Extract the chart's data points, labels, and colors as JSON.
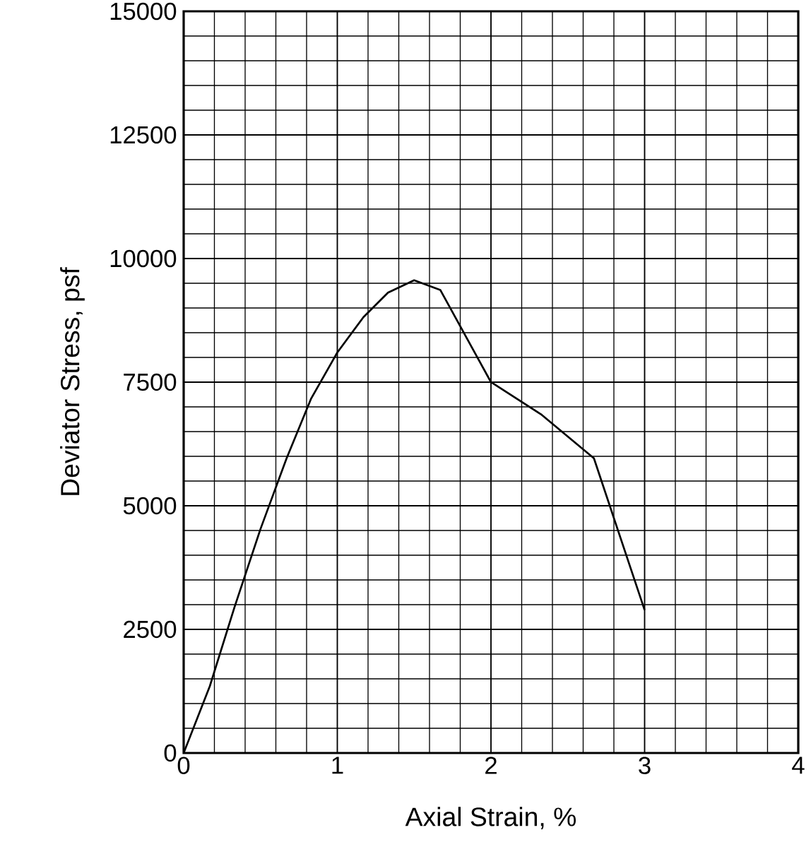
{
  "chart_data": {
    "type": "line",
    "xlabel": "Axial Strain, %",
    "ylabel": "Deviator Stress, psf",
    "x": [
      0,
      0.17,
      0.33,
      0.5,
      0.67,
      0.83,
      1.0,
      1.17,
      1.33,
      1.5,
      1.67,
      2.0,
      2.33,
      2.67,
      3.0
    ],
    "series": [
      {
        "color": "#000000",
        "values": [
          0,
          1350,
          2940,
          4530,
          5960,
          7170,
          8100,
          8815,
          9310,
          9560,
          9365,
          7500,
          6840,
          5960,
          2890
        ]
      }
    ],
    "xlim": [
      0,
      4
    ],
    "ylim": [
      0,
      15000
    ],
    "xticks": [
      0,
      1,
      2,
      3,
      4
    ],
    "yticks": [
      0,
      2500,
      5000,
      7500,
      10000,
      12500,
      15000
    ],
    "grid": true,
    "marker": "none",
    "line_style": "solid"
  }
}
